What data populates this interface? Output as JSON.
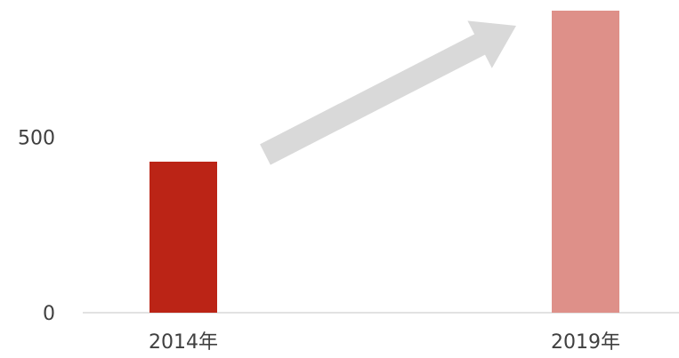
{
  "chart_data": {
    "type": "bar",
    "categories": [
      "2014年",
      "2019年"
    ],
    "values": [
      430,
      860
    ],
    "colors": [
      "#bb2416",
      "#de9089"
    ],
    "ylim": [
      0,
      860
    ],
    "yticks": [
      0,
      500
    ],
    "grid": false,
    "annotations": [
      {
        "type": "arrow",
        "from": "2014年",
        "to": "2019年",
        "color": "#d9d9d9"
      }
    ]
  }
}
